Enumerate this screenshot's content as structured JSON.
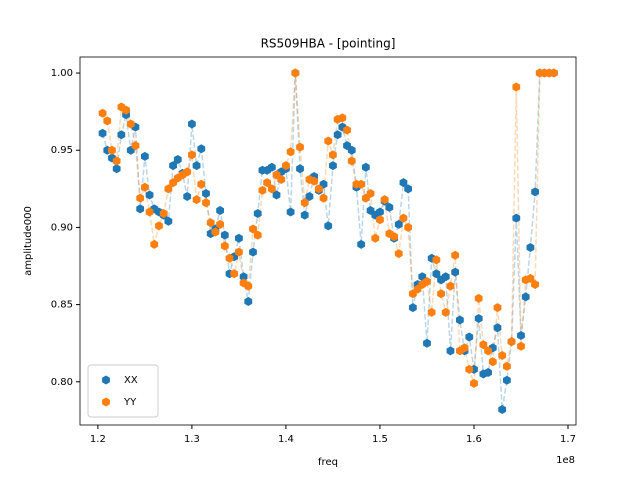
{
  "chart_data": {
    "type": "line",
    "title": "RS509HBA - [pointing]",
    "x_label": "freq",
    "y_label": "amplitude000",
    "x_offset_label": "1e8",
    "x": [
      1.205,
      1.21,
      1.215,
      1.22,
      1.225,
      1.23,
      1.235,
      1.24,
      1.245,
      1.25,
      1.255,
      1.26,
      1.265,
      1.27,
      1.275,
      1.28,
      1.285,
      1.29,
      1.295,
      1.3,
      1.305,
      1.31,
      1.315,
      1.32,
      1.325,
      1.33,
      1.335,
      1.34,
      1.345,
      1.35,
      1.355,
      1.36,
      1.365,
      1.37,
      1.375,
      1.38,
      1.385,
      1.39,
      1.395,
      1.4,
      1.405,
      1.41,
      1.415,
      1.42,
      1.425,
      1.43,
      1.435,
      1.44,
      1.445,
      1.45,
      1.455,
      1.46,
      1.465,
      1.47,
      1.475,
      1.48,
      1.485,
      1.49,
      1.495,
      1.5,
      1.505,
      1.51,
      1.515,
      1.52,
      1.525,
      1.53,
      1.535,
      1.54,
      1.545,
      1.55,
      1.555,
      1.56,
      1.565,
      1.57,
      1.575,
      1.58,
      1.585,
      1.59,
      1.595,
      1.6,
      1.605,
      1.61,
      1.615,
      1.62,
      1.625,
      1.63,
      1.635,
      1.64,
      1.645,
      1.65,
      1.655,
      1.66,
      1.665,
      1.67,
      1.675,
      1.68,
      1.685
    ],
    "series": [
      {
        "name": "XX",
        "color": "#1f77b4",
        "values": [
          0.961,
          0.95,
          0.945,
          0.938,
          0.96,
          0.973,
          0.95,
          0.965,
          0.912,
          0.946,
          0.921,
          0.912,
          0.91,
          0.908,
          0.904,
          0.94,
          0.944,
          0.935,
          0.92,
          0.967,
          0.94,
          0.951,
          0.922,
          0.896,
          0.899,
          0.911,
          0.895,
          0.87,
          0.881,
          0.893,
          0.868,
          0.852,
          0.884,
          0.909,
          0.937,
          0.937,
          0.939,
          0.921,
          0.936,
          0.938,
          0.91,
          1.0,
          0.938,
          0.908,
          0.92,
          0.933,
          0.924,
          0.928,
          0.901,
          0.94,
          0.96,
          0.965,
          0.953,
          0.95,
          0.926,
          0.889,
          0.939,
          0.911,
          0.908,
          0.91,
          0.917,
          0.913,
          0.893,
          0.902,
          0.929,
          0.925,
          0.848,
          0.863,
          0.868,
          0.825,
          0.88,
          0.87,
          0.866,
          0.868,
          0.82,
          0.871,
          0.84,
          0.82,
          0.829,
          0.808,
          0.841,
          0.805,
          0.806,
          0.822,
          0.835,
          0.782,
          0.801,
          0.826,
          0.906,
          0.83,
          0.855,
          0.887,
          0.923,
          1.0,
          1.0,
          1.0,
          1.0
        ]
      },
      {
        "name": "YY",
        "color": "#ff7f0e",
        "values": [
          0.974,
          0.969,
          0.95,
          0.943,
          0.978,
          0.976,
          0.967,
          0.953,
          0.919,
          0.926,
          0.91,
          0.889,
          0.901,
          0.909,
          0.925,
          0.929,
          0.932,
          0.934,
          0.936,
          0.947,
          0.918,
          0.928,
          0.916,
          0.903,
          0.897,
          0.902,
          0.888,
          0.88,
          0.87,
          0.884,
          0.864,
          0.862,
          0.899,
          0.895,
          0.924,
          0.929,
          0.925,
          0.934,
          0.931,
          0.94,
          0.949,
          1.0,
          0.952,
          0.916,
          0.931,
          0.93,
          0.925,
          0.919,
          0.956,
          0.947,
          0.97,
          0.971,
          0.963,
          0.943,
          0.928,
          0.928,
          0.919,
          0.922,
          0.893,
          0.905,
          0.918,
          0.896,
          0.894,
          0.883,
          0.906,
          0.9,
          0.857,
          0.86,
          0.863,
          0.865,
          0.845,
          0.879,
          0.857,
          0.845,
          0.862,
          0.882,
          0.82,
          0.822,
          0.808,
          0.799,
          0.854,
          0.824,
          0.82,
          0.813,
          0.848,
          0.817,
          0.81,
          0.826,
          0.991,
          0.823,
          0.866,
          0.867,
          0.863,
          1.0,
          1.0,
          1.0,
          1.0
        ]
      }
    ],
    "xlim": [
      1.181,
      1.7085
    ],
    "ylim": [
      0.772,
      1.0104
    ],
    "xticks": [
      1.2,
      1.3,
      1.4,
      1.5,
      1.6,
      1.7
    ],
    "yticks": [
      {
        "value": 0.8,
        "label": "0.80"
      },
      0.85,
      {
        "value": 0.9,
        "label": "0.90"
      },
      0.95,
      {
        "value": 1.0,
        "label": "1.00"
      }
    ],
    "legend": "lower left",
    "line_style": "dashed",
    "marker": "hexagon"
  }
}
